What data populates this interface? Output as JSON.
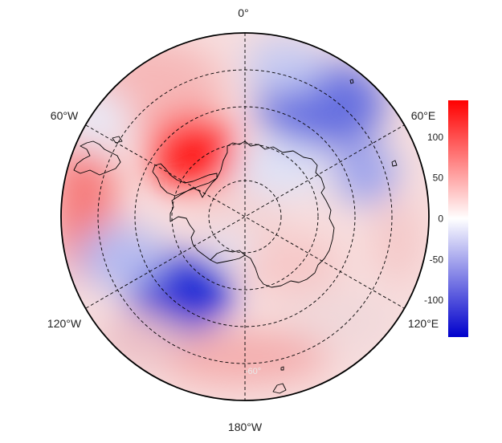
{
  "projection": "south-polar-stereographic",
  "longitude_labels": {
    "top": "0°",
    "upper_left": "60°W",
    "upper_right": "60°E",
    "lower_left": "120°W",
    "lower_right": "120°E",
    "bottom": "180°W"
  },
  "latitude_label": "-60°",
  "colorbar": {
    "ticks": [
      "100",
      "50",
      "0",
      "-50",
      "-100"
    ],
    "tick_values": [
      100,
      50,
      0,
      -50,
      -100
    ],
    "range": [
      -145,
      145
    ],
    "colors": {
      "max": "#ff0000",
      "mid": "#ffffff",
      "min": "#0000cc"
    }
  },
  "colors": {
    "coast": "#000000",
    "grid": "#000000",
    "rim": "#000000"
  }
}
